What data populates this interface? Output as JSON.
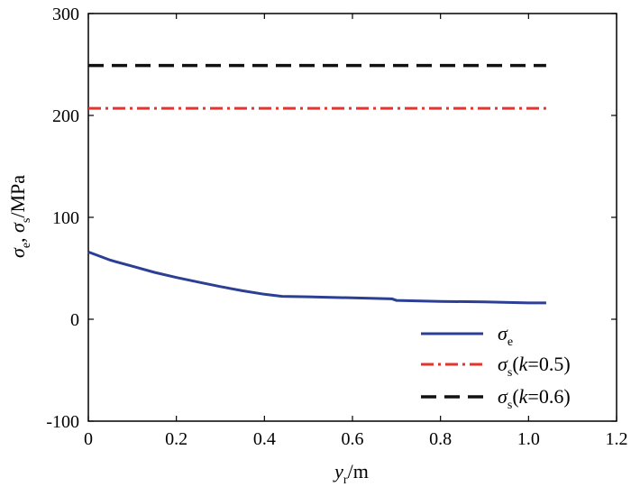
{
  "chart_data": {
    "type": "line",
    "title": "",
    "xlabel": {
      "symbol": "y",
      "sub": "r",
      "unit": "/m"
    },
    "ylabel": {
      "sym1": "σ",
      "sub1": "e",
      "sep": ", ",
      "sym2": "σ",
      "sub2": "s",
      "unit": "/MPa"
    },
    "xlim": [
      0,
      1.2
    ],
    "ylim": [
      -100,
      300
    ],
    "xticks": [
      0,
      0.2,
      0.4,
      0.6,
      0.8,
      1.0,
      1.2
    ],
    "xtick_labels": [
      "0",
      "0.2",
      "0.4",
      "0.6",
      "0.8",
      "1.0",
      "1.2"
    ],
    "yticks": [
      -100,
      0,
      100,
      200,
      300
    ],
    "ytick_labels": [
      "-100",
      "0",
      "100",
      "200",
      "300"
    ],
    "grid": false,
    "legend_position": "bottom-right",
    "series": [
      {
        "key": "sigma_e",
        "legend": {
          "sym": "σ",
          "sub": "e",
          "rest": ""
        },
        "color": "#2b3f94",
        "style": "solid",
        "x": [
          0,
          0.05,
          0.1,
          0.15,
          0.2,
          0.25,
          0.3,
          0.35,
          0.4,
          0.44,
          0.5,
          0.6,
          0.69,
          0.7,
          0.8,
          0.9,
          1.0,
          1.04
        ],
        "y": [
          66,
          58,
          52,
          46,
          41,
          36.5,
          32,
          28,
          24.5,
          22.5,
          22,
          21,
          20,
          18.5,
          17.5,
          17,
          16,
          16
        ]
      },
      {
        "key": "sigma_s_k05",
        "legend": {
          "sym": "σ",
          "sub": "s",
          "rest": "(k=0.5)",
          "k": "k",
          "kval": "=0.5)"
        },
        "color": "#e8322c",
        "style": "dashdot",
        "x": [
          0,
          1.04
        ],
        "y": [
          207,
          207
        ]
      },
      {
        "key": "sigma_s_k06",
        "legend": {
          "sym": "σ",
          "sub": "s",
          "rest": "(k=0.6)",
          "k": "k",
          "kval": "=0.6)"
        },
        "color": "#111111",
        "style": "dashed",
        "x": [
          0,
          1.04
        ],
        "y": [
          249,
          249
        ]
      }
    ]
  }
}
